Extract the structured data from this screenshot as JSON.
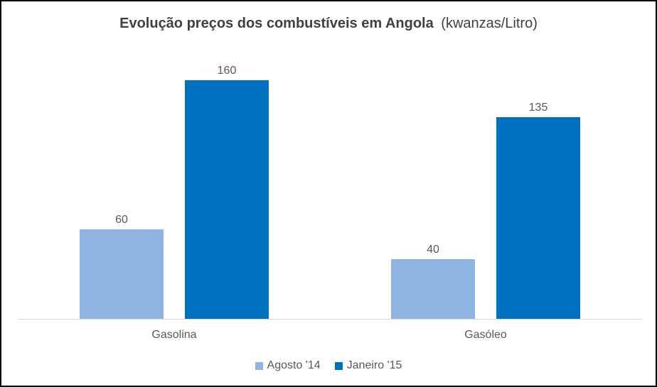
{
  "window": {
    "border_color": "#000000",
    "background_color": "#ffffff"
  },
  "title": {
    "main": "Evolução preços dos combustíveis em Angola",
    "unit": "(kwanzas/Litro)",
    "color": "#404040"
  },
  "chart_data": {
    "type": "bar",
    "title": "Evolução preços dos combustíveis em Angola (kwanzas/Litro)",
    "categories": [
      "Gasolina",
      "Gasóleo"
    ],
    "series": [
      {
        "name": "Agosto '14",
        "values": [
          60,
          40
        ],
        "color": "#8EB4E3"
      },
      {
        "name": "Janeiro '15",
        "values": [
          160,
          135
        ],
        "color": "#0070C0"
      }
    ],
    "ylim": [
      0,
      180
    ],
    "xlabel": "",
    "ylabel": "",
    "grid": false,
    "data_labels": true,
    "legend_position": "bottom",
    "axis_line_color": "#d9d9d9",
    "label_color": "#595959"
  }
}
